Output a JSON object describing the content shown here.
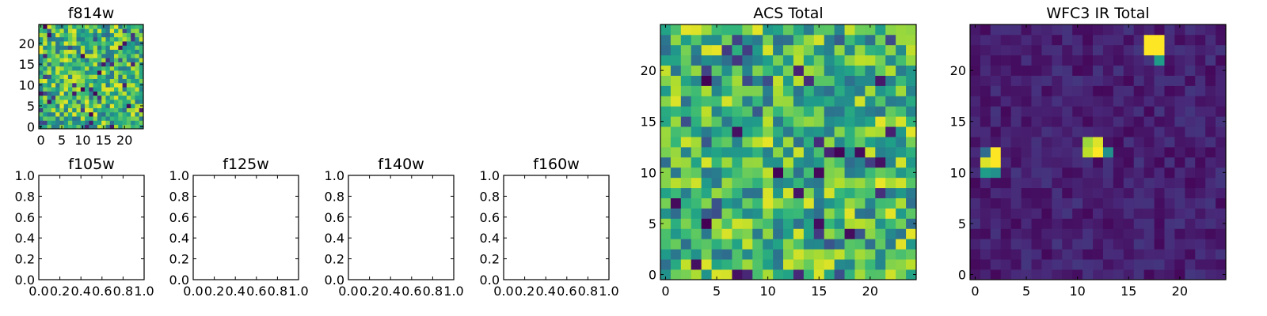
{
  "chart_data": [
    {
      "type": "heatmap",
      "title": "f814w",
      "colormap": "viridis",
      "grid": false,
      "shape": [
        25,
        25
      ],
      "xticks": [
        0,
        5,
        10,
        15,
        20
      ],
      "yticks": [
        0,
        5,
        10,
        15,
        20
      ],
      "xlim": [
        -0.5,
        24.5
      ],
      "ylim": [
        -0.5,
        24.5
      ],
      "note": "random-looking pixel values"
    },
    {
      "type": "empty",
      "title": "f105w",
      "xlim": [
        0,
        1
      ],
      "ylim": [
        0,
        1
      ],
      "xticks": [
        "0.0",
        "0.2",
        "0.4",
        "0.6",
        "0.8",
        "1.0"
      ],
      "yticks": [
        "0.0",
        "0.2",
        "0.4",
        "0.6",
        "0.8",
        "1.0"
      ]
    },
    {
      "type": "empty",
      "title": "f125w",
      "xlim": [
        0,
        1
      ],
      "ylim": [
        0,
        1
      ],
      "xticks": [
        "0.0",
        "0.2",
        "0.4",
        "0.6",
        "0.8",
        "1.0"
      ],
      "yticks": [
        "0.0",
        "0.2",
        "0.4",
        "0.6",
        "0.8",
        "1.0"
      ]
    },
    {
      "type": "empty",
      "title": "f140w",
      "xlim": [
        0,
        1
      ],
      "ylim": [
        0,
        1
      ],
      "xticks": [
        "0.0",
        "0.2",
        "0.4",
        "0.6",
        "0.8",
        "1.0"
      ],
      "yticks": [
        "0.0",
        "0.2",
        "0.4",
        "0.6",
        "0.8",
        "1.0"
      ]
    },
    {
      "type": "empty",
      "title": "f160w",
      "xlim": [
        0,
        1
      ],
      "ylim": [
        0,
        1
      ],
      "xticks": [
        "0.0",
        "0.2",
        "0.4",
        "0.6",
        "0.8",
        "1.0"
      ],
      "yticks": [
        "0.0",
        "0.2",
        "0.4",
        "0.6",
        "0.8",
        "1.0"
      ]
    },
    {
      "type": "heatmap",
      "title": "ACS Total",
      "colormap": "viridis",
      "grid": false,
      "shape": [
        25,
        25
      ],
      "xticks": [
        0,
        5,
        10,
        15,
        20
      ],
      "yticks": [
        0,
        5,
        10,
        15,
        20
      ],
      "xlim": [
        -0.5,
        24.5
      ],
      "ylim": [
        -0.5,
        24.5
      ],
      "note": "random-looking pixel values"
    },
    {
      "type": "heatmap",
      "title": "WFC3 IR Total",
      "colormap": "viridis",
      "grid": false,
      "shape": [
        25,
        25
      ],
      "xticks": [
        0,
        5,
        10,
        15,
        20
      ],
      "yticks": [
        0,
        5,
        10,
        15,
        20
      ],
      "xlim": [
        -0.5,
        24.5
      ],
      "ylim": [
        -0.5,
        24.5
      ],
      "hotspots": [
        {
          "x": 17,
          "y": 23,
          "value": 1.0
        },
        {
          "x": 18,
          "y": 23,
          "value": 1.0
        },
        {
          "x": 17,
          "y": 22,
          "value": 1.0
        },
        {
          "x": 18,
          "y": 22,
          "value": 1.0
        },
        {
          "x": 18,
          "y": 21,
          "value": 0.55
        },
        {
          "x": 2,
          "y": 12,
          "value": 1.0
        },
        {
          "x": 1,
          "y": 11,
          "value": 0.95
        },
        {
          "x": 2,
          "y": 11,
          "value": 1.0
        },
        {
          "x": 1,
          "y": 10,
          "value": 0.55
        },
        {
          "x": 2,
          "y": 10,
          "value": 0.5
        },
        {
          "x": 1,
          "y": 12,
          "value": 0.35
        },
        {
          "x": 11,
          "y": 13,
          "value": 0.85
        },
        {
          "x": 12,
          "y": 13,
          "value": 0.95
        },
        {
          "x": 11,
          "y": 12,
          "value": 0.9
        },
        {
          "x": 12,
          "y": 12,
          "value": 1.0
        },
        {
          "x": 13,
          "y": 12,
          "value": 0.5
        }
      ]
    }
  ]
}
